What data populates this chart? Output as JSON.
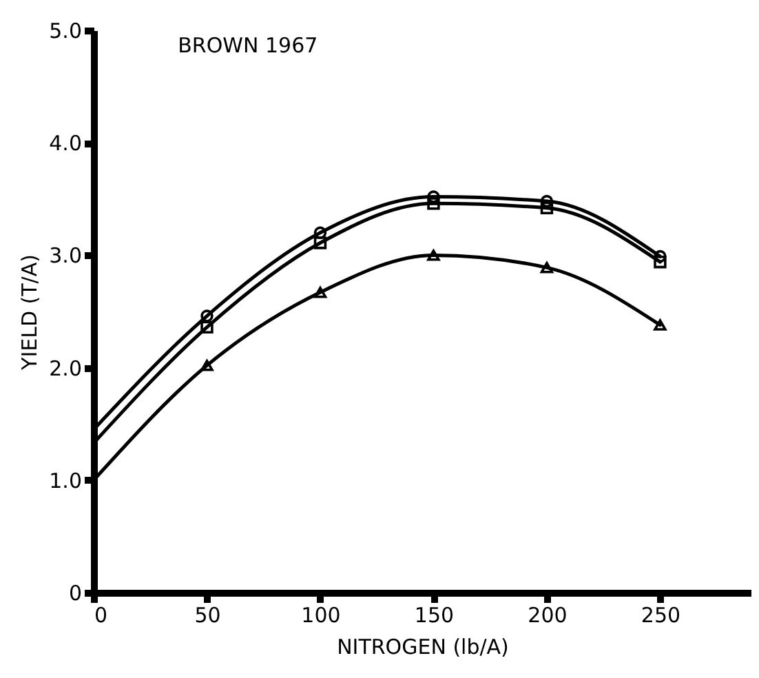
{
  "chart_data": {
    "type": "line",
    "title": "BROWN 1967",
    "xlabel": "NITROGEN  (lb/A)",
    "ylabel": "YIELD  (T/A)",
    "xlim": [
      0,
      290
    ],
    "xticks": [
      0,
      50,
      100,
      150,
      200,
      250
    ],
    "ylim": [
      0,
      5
    ],
    "yticks": [
      0,
      {
        "value": 1,
        "label": "1.0"
      },
      {
        "value": 2,
        "label": "2.0"
      },
      {
        "value": 3,
        "label": "3.0"
      },
      {
        "value": 4,
        "label": "4.0"
      },
      {
        "value": 5,
        "label": "5.0"
      }
    ],
    "grid": false,
    "series": [
      {
        "type": "line",
        "color": "#000000",
        "x": [
          0,
          50,
          100,
          150,
          200,
          250
        ],
        "values": [
          1.45,
          2.46,
          3.2,
          3.52,
          3.48,
          2.99
        ]
      },
      {
        "type": "line",
        "color": "#000000",
        "x": [
          0,
          50,
          100,
          150,
          200,
          250
        ],
        "values": [
          1.33,
          2.36,
          3.11,
          3.46,
          3.42,
          2.94
        ]
      },
      {
        "type": "line",
        "color": "#000000",
        "x": [
          0,
          50,
          100,
          150,
          200,
          250
        ],
        "values": [
          1.0,
          2.02,
          2.67,
          3.0,
          2.89,
          2.38
        ]
      },
      {
        "type": "scatter",
        "color": "#000000",
        "marker": "circle",
        "x": [
          50,
          100,
          150,
          200,
          250
        ],
        "values": [
          2.46,
          3.2,
          3.52,
          3.48,
          2.99
        ]
      },
      {
        "type": "scatter",
        "color": "#000000",
        "marker": "square",
        "x": [
          50,
          100,
          150,
          200,
          250
        ],
        "values": [
          2.36,
          3.11,
          3.46,
          3.42,
          2.94
        ]
      },
      {
        "type": "scatter",
        "color": "#000000",
        "marker": "triangle",
        "x": [
          50,
          100,
          150,
          200,
          250
        ],
        "values": [
          2.02,
          2.67,
          3.0,
          2.89,
          2.38
        ]
      }
    ]
  }
}
